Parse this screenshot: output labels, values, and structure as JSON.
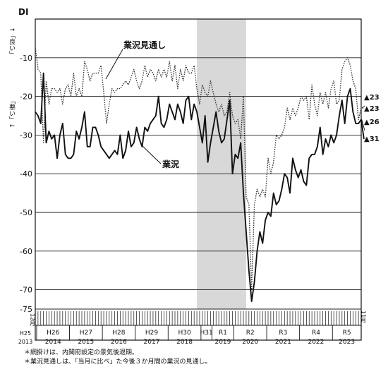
{
  "chart_data": {
    "type": "line",
    "ylabel": "DI",
    "ylabel_good": "↑「良い」",
    "ylabel_bad": "「悪い」↓",
    "ylim": [
      -75,
      0
    ],
    "yticks": [
      -10,
      -20,
      -30,
      -40,
      -50,
      -60,
      -70,
      -75
    ],
    "grid": true,
    "shaded_period": {
      "from": "2018-11",
      "to": "2020-05"
    },
    "x_range": {
      "from": "2013-12",
      "to": "2023-11"
    },
    "start_label": {
      "era": "H25",
      "year": "2013",
      "month": "12月"
    },
    "end_label": "11月",
    "years": [
      {
        "era": "H26",
        "year": "2014",
        "start": "2014-01"
      },
      {
        "era": "H27",
        "year": "2015",
        "start": "2015-01"
      },
      {
        "era": "H28",
        "year": "2016",
        "start": "2016-01"
      },
      {
        "era": "H29",
        "year": "2017",
        "start": "2017-01"
      },
      {
        "era": "H30",
        "year": "2018",
        "start": "2018-01"
      },
      {
        "era": "H31",
        "year": "",
        "start": "2019-01"
      },
      {
        "era": "R1",
        "year": "2019",
        "start": "2019-05"
      },
      {
        "era": "R2",
        "year": "2020",
        "start": "2020-01"
      },
      {
        "era": "R3",
        "year": "2021",
        "start": "2021-01"
      },
      {
        "era": "R4",
        "year": "2022",
        "start": "2022-01"
      },
      {
        "era": "R5",
        "year": "2023",
        "start": "2023-01"
      }
    ],
    "series": [
      {
        "name": "業況",
        "style": "solid",
        "color": "#111111",
        "start": "2013-12",
        "values": [
          -24,
          -25,
          -27,
          -14,
          -32,
          -29,
          -31,
          -30,
          -36,
          -30,
          -27,
          -35,
          -36,
          -36,
          -35,
          -29,
          -31,
          -28,
          -24,
          -33,
          -33,
          -28,
          -28,
          -30,
          -33,
          -34,
          -35,
          -36,
          -35,
          -34,
          -35,
          -30,
          -36,
          -34,
          -29,
          -33,
          -32,
          -28,
          -31,
          -33,
          -28,
          -29,
          -27,
          -26,
          -25,
          -20,
          -27,
          -28,
          -26,
          -22,
          -24,
          -26,
          -22,
          -24,
          -27,
          -21,
          -20,
          -26,
          -22,
          -24,
          -28,
          -32,
          -25,
          -37,
          -32,
          -28,
          -24,
          -29,
          -32,
          -31,
          -26,
          -21,
          -40,
          -35,
          -36,
          -32,
          -45,
          -55,
          -65,
          -73,
          -68,
          -60,
          -55,
          -58,
          -52,
          -50,
          -51,
          -45,
          -48,
          -47,
          -44,
          -40,
          -41,
          -45,
          -36,
          -39,
          -41,
          -39,
          -42,
          -43,
          -36,
          -35,
          -35,
          -33,
          -28,
          -35,
          -31,
          -33,
          -30,
          -32,
          -30,
          -25,
          -21,
          -27,
          -20,
          -18,
          -24,
          -27,
          -27,
          -26,
          -31
        ]
      },
      {
        "name": "業況見通し",
        "style": "dotted",
        "color": "#333333",
        "start": "2013-12",
        "values": [
          -7,
          -13,
          -14,
          -32,
          -16,
          -22,
          -18,
          -18,
          -19,
          -18,
          -22,
          -18,
          -17,
          -20,
          -14,
          -20,
          -18,
          -20,
          -11,
          -13,
          -16,
          -14,
          -14,
          -14,
          -12,
          -19,
          -27,
          -22,
          -18,
          -19,
          -18,
          -18,
          -17,
          -16,
          -17,
          -15,
          -13,
          -16,
          -18,
          -16,
          -12,
          -15,
          -13,
          -14,
          -16,
          -13,
          -15,
          -13,
          -15,
          -11,
          -16,
          -12,
          -18,
          -13,
          -16,
          -12,
          -14,
          -14,
          -12,
          -18,
          -22,
          -17,
          -19,
          -20,
          -16,
          -19,
          -22,
          -24,
          -22,
          -25,
          -24,
          -19,
          -25,
          -27,
          -26,
          -31,
          -20,
          -46,
          -48,
          -70,
          -48,
          -44,
          -46,
          -44,
          -46,
          -36,
          -40,
          -37,
          -30,
          -31,
          -30,
          -28,
          -23,
          -26,
          -23,
          -25,
          -23,
          -20,
          -21,
          -20,
          -26,
          -17,
          -22,
          -25,
          -19,
          -22,
          -19,
          -23,
          -18,
          -16,
          -22,
          -21,
          -13,
          -11,
          -10,
          -12,
          -16,
          -18,
          -26,
          -23,
          -23
        ]
      }
    ],
    "series_labels": [
      "業況見通し",
      "業況"
    ],
    "end_annotations": [
      {
        "text": "▲23",
        "value": -23
      },
      {
        "text": "▲23",
        "value": -23
      },
      {
        "text": "▲26",
        "value": -26
      },
      {
        "text": "▲31",
        "value": -31
      }
    ]
  },
  "notes": [
    "＊網掛けは、内閣府設定の景気後退期。",
    "＊業況見通しは、「当月に比べ」た今後３か月間の業況の見通し。"
  ]
}
